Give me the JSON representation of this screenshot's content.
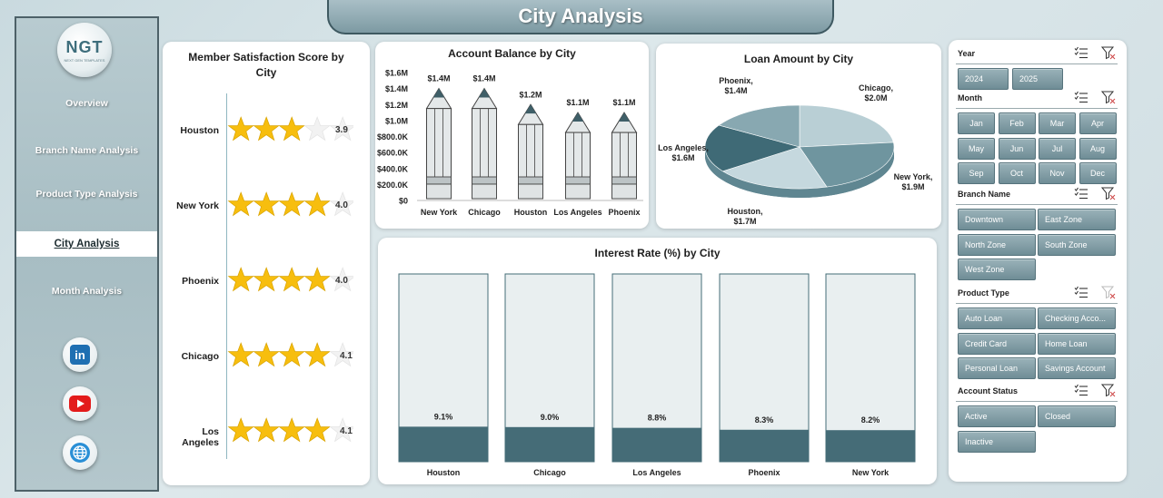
{
  "page_title": "City Analysis",
  "sidebar": {
    "logo_text": "NGT",
    "logo_subtext": "NEXT GEN TEMPLATES",
    "items": [
      {
        "label": "Overview"
      },
      {
        "label": "Branch Name Analysis"
      },
      {
        "label": "Product Type Analysis"
      },
      {
        "label": "City Analysis",
        "active": true
      },
      {
        "label": "Month Analysis"
      }
    ],
    "social": [
      "linkedin-icon",
      "youtube-icon",
      "globe-icon"
    ],
    "linkedin_text": "in"
  },
  "colors": {
    "accent": "#6f8d96",
    "dark_teal": "#456c77",
    "star": "#f7be0e"
  },
  "satisfaction": {
    "title_line1": "Member Satisfaction Score by",
    "title_line2": "City",
    "rows": [
      {
        "city": "Houston",
        "value": 3.9,
        "label": "3.9"
      },
      {
        "city": "New York",
        "value": 4.0,
        "label": "4.0"
      },
      {
        "city": "Phoenix",
        "value": 4.0,
        "label": "4.0"
      },
      {
        "city": "Chicago",
        "value": 4.1,
        "label": "4.1"
      },
      {
        "city": "Los Angeles",
        "value": 4.1,
        "label": "4.1"
      }
    ]
  },
  "chart_data": [
    {
      "type": "bar",
      "title": "Account Balance by City",
      "categories": [
        "New York",
        "Chicago",
        "Houston",
        "Los Angeles",
        "Phoenix"
      ],
      "values": [
        1.4,
        1.4,
        1.2,
        1.1,
        1.1
      ],
      "data_labels": [
        "$1.4M",
        "$1.4M",
        "$1.2M",
        "$1.1M",
        "$1.1M"
      ],
      "yticks": [
        "$0",
        "$200.0K",
        "$400.0K",
        "$600.0K",
        "$800.0K",
        "$1.0M",
        "$1.2M",
        "$1.4M",
        "$1.6M"
      ],
      "ylim": [
        0,
        1.6
      ]
    },
    {
      "type": "pie",
      "title": "Loan Amount by City",
      "categories": [
        "Chicago",
        "New York",
        "Houston",
        "Los Angeles",
        "Phoenix"
      ],
      "values": [
        2.0,
        1.9,
        1.7,
        1.6,
        1.4
      ],
      "data_labels": [
        "$2.0M",
        "$1.9M",
        "$1.7M",
        "$1.6M",
        "$1.4M"
      ],
      "colors": [
        "#b9cfd5",
        "#6f959f",
        "#c5d8de",
        "#3f6a76",
        "#88a8b1"
      ]
    },
    {
      "type": "bar",
      "title": "Interest Rate (%) by City",
      "categories": [
        "Houston",
        "Chicago",
        "Los Angeles",
        "Phoenix",
        "New York"
      ],
      "values": [
        9.1,
        9.0,
        8.8,
        8.3,
        8.2
      ],
      "data_labels": [
        "9.1%",
        "9.0%",
        "8.8%",
        "8.3%",
        "8.2%"
      ],
      "ylim": [
        0,
        100
      ]
    }
  ],
  "filters": {
    "year": {
      "label": "Year",
      "options": [
        "2024",
        "2025"
      ]
    },
    "month": {
      "label": "Month",
      "options": [
        "Jan",
        "Feb",
        "Mar",
        "Apr",
        "May",
        "Jun",
        "Jul",
        "Aug",
        "Sep",
        "Oct",
        "Nov",
        "Dec"
      ]
    },
    "branch": {
      "label": "Branch Name",
      "options": [
        "Downtown",
        "East Zone",
        "North Zone",
        "South Zone",
        "West Zone"
      ]
    },
    "product": {
      "label": "Product Type",
      "options": [
        "Auto Loan",
        "Checking Acco...",
        "Credit Card",
        "Home Loan",
        "Personal Loan",
        "Savings Account"
      ]
    },
    "status": {
      "label": "Account Status",
      "options": [
        "Active",
        "Closed",
        "Inactive"
      ]
    }
  }
}
